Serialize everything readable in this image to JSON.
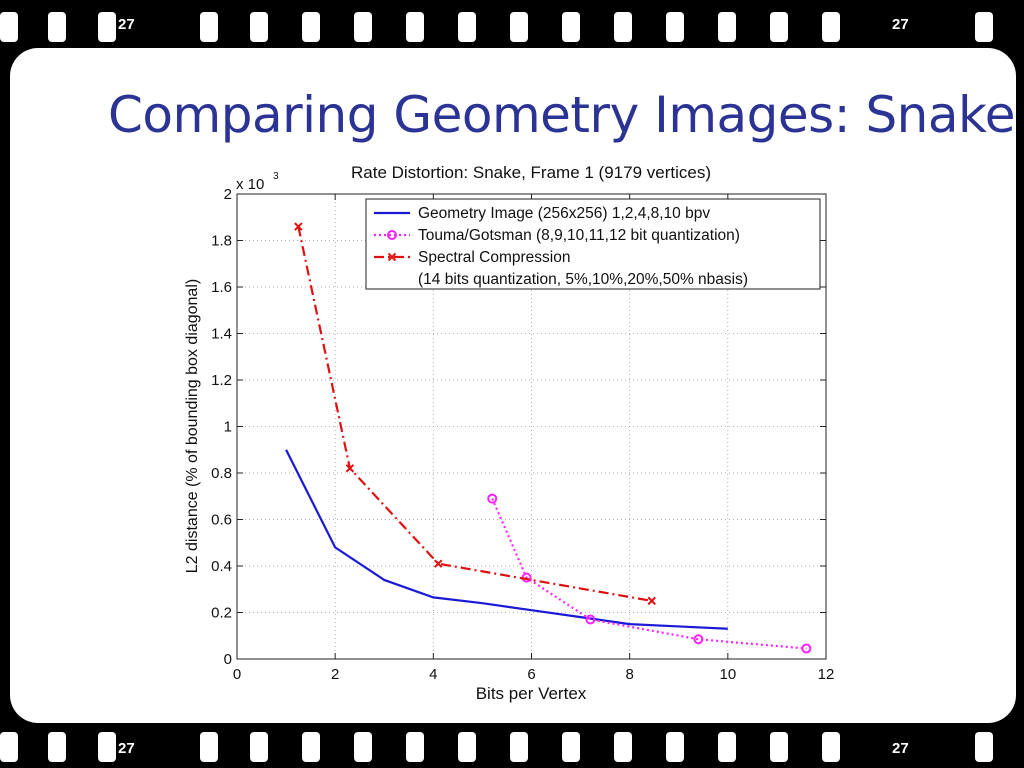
{
  "slide": {
    "title": "Comparing Geometry Images: Snake",
    "frame_numbers": [
      "27",
      "27",
      "27",
      "27"
    ]
  },
  "chart_data": {
    "type": "line",
    "title": "Rate Distortion: Snake, Frame 1 (9179 vertices)",
    "xlabel": "Bits per Vertex",
    "ylabel": "L2 distance (% of bounding box diagonal)",
    "y_multiplier": "x 10",
    "y_multiplier_exp": "3",
    "xlim": [
      0,
      12
    ],
    "ylim": [
      0,
      2
    ],
    "xticks": [
      0,
      2,
      4,
      6,
      8,
      10,
      12
    ],
    "yticks": [
      0,
      0.2,
      0.4,
      0.6,
      0.8,
      1,
      1.2,
      1.4,
      1.6,
      1.8,
      2
    ],
    "grid": true,
    "legend_position": "top-right",
    "series": [
      {
        "name": "Geometry Image (256x256) 1,2,4,8,10 bpv",
        "color": "#1a1ad6",
        "style": "solid",
        "marker": "none",
        "x": [
          1,
          2,
          3,
          4,
          5,
          6,
          7,
          8,
          9,
          10
        ],
        "y": [
          0.9,
          0.48,
          0.34,
          0.265,
          0.24,
          0.21,
          0.18,
          0.15,
          0.14,
          0.13
        ]
      },
      {
        "name": "Touma/Gotsman (8,9,10,11,12 bit quantization)",
        "color": "#ff22ff",
        "style": "dotted",
        "marker": "circle",
        "x": [
          5.2,
          5.9,
          7.2,
          9.4,
          11.6
        ],
        "y": [
          0.69,
          0.35,
          0.17,
          0.085,
          0.045
        ]
      },
      {
        "name": "Spectral Compression",
        "name2": "(14 bits quantization, 5%,10%,20%,50% nbasis)",
        "color": "#e01010",
        "style": "dashdot",
        "marker": "x",
        "x": [
          1.25,
          2.3,
          4.1,
          8.45
        ],
        "y": [
          1.86,
          0.82,
          0.41,
          0.25
        ]
      }
    ]
  }
}
